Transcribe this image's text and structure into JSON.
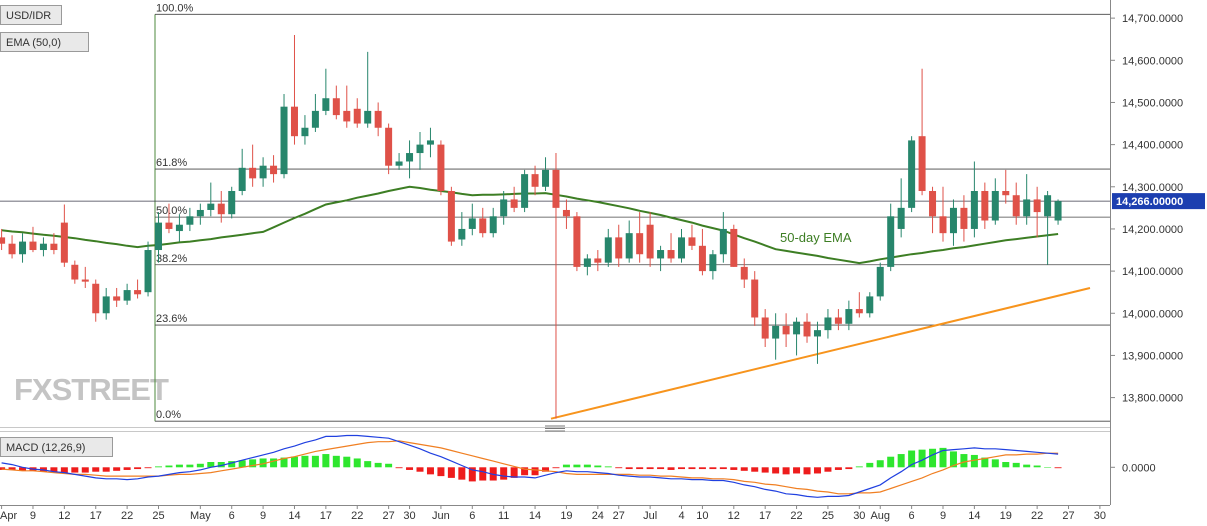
{
  "chart_data": [
    {
      "type": "candlestick",
      "title": "USD/IDR",
      "categories": [
        "Apr",
        null,
        null,
        "9",
        null,
        null,
        "12",
        null,
        null,
        "17",
        null,
        null,
        "22",
        null,
        null,
        "25",
        null,
        null,
        null,
        "May",
        null,
        null,
        "6",
        null,
        null,
        "9",
        null,
        null,
        "14",
        null,
        null,
        "17",
        null,
        null,
        "22",
        null,
        null,
        "27",
        null,
        "30",
        null,
        null,
        "Jun",
        null,
        null,
        "6",
        null,
        null,
        "11",
        null,
        null,
        "14",
        null,
        null,
        "19",
        null,
        null,
        "24",
        null,
        "27",
        null,
        null,
        "Jul",
        null,
        null,
        "4",
        null,
        "10",
        null,
        null,
        "12",
        null,
        null,
        "17",
        null,
        null,
        "22",
        null,
        null,
        "25",
        null,
        null,
        "30",
        null,
        "Aug",
        null,
        null,
        "6",
        null,
        null,
        "9",
        null,
        null,
        "14",
        null,
        null,
        "19",
        null,
        null,
        "22",
        null,
        null,
        "27",
        null,
        null,
        "30"
      ],
      "open": [
        14180,
        14165,
        14140,
        14170,
        14150,
        14165,
        14215,
        14115,
        14080,
        14070,
        14000,
        14040,
        14030,
        14055,
        14050,
        14150,
        14215,
        14195,
        14210,
        14230,
        14245,
        14260,
        14235,
        14290,
        14345,
        14320,
        14350,
        14330,
        14490,
        14420,
        14440,
        14480,
        14510,
        14480,
        14485,
        14450,
        14480,
        14440,
        14350,
        14360,
        14380,
        14400,
        14400,
        14290,
        14175,
        14200,
        14225,
        14190,
        14230,
        14270,
        14250,
        14330,
        14300,
        14340,
        14245,
        14230,
        14110,
        14130,
        14120,
        14180,
        14130,
        14190,
        14210,
        14130,
        14150,
        14130,
        14180,
        14160,
        14100,
        14140,
        14200,
        14110,
        14080,
        13990,
        13940,
        13970,
        13950,
        13980,
        13945,
        13960,
        13990,
        13975,
        14010,
        14000,
        14040,
        14110,
        14200,
        14250,
        14420,
        14290,
        14230,
        14190,
        14250,
        14200,
        14290,
        14220,
        14290,
        14280,
        14230,
        14270,
        14230,
        14220,
        null,
        null,
        null,
        null
      ],
      "high": [
        14200,
        14185,
        14190,
        14205,
        14180,
        14190,
        14258,
        14125,
        14110,
        14080,
        14060,
        14060,
        14070,
        14080,
        14170,
        14240,
        14260,
        14235,
        14250,
        14260,
        14310,
        14290,
        14300,
        14390,
        14400,
        14370,
        14375,
        14520,
        14660,
        14470,
        14520,
        14580,
        14540,
        14540,
        14510,
        14620,
        14500,
        14450,
        14380,
        14410,
        14430,
        14440,
        14410,
        14300,
        14240,
        14260,
        14250,
        14250,
        14290,
        14300,
        14340,
        14350,
        14370,
        14380,
        14270,
        14240,
        14140,
        14150,
        14200,
        14210,
        14220,
        14240,
        14240,
        14160,
        14190,
        14200,
        14210,
        14200,
        14150,
        14240,
        14210,
        14130,
        14100,
        14010,
        14000,
        14000,
        13990,
        14000,
        13980,
        14010,
        14010,
        14030,
        14050,
        14050,
        14120,
        14260,
        14320,
        14420,
        14580,
        14300,
        14300,
        14270,
        14280,
        14360,
        14310,
        14320,
        14340,
        14310,
        14330,
        14300,
        14290,
        14270,
        null,
        null,
        null,
        null
      ],
      "low": [
        14150,
        14130,
        14120,
        14145,
        14135,
        14140,
        14110,
        14070,
        14060,
        13980,
        13985,
        14015,
        14020,
        14035,
        14040,
        14120,
        14190,
        14170,
        14195,
        14210,
        14230,
        14215,
        14225,
        14280,
        14300,
        14300,
        14310,
        14320,
        14400,
        14400,
        14430,
        14470,
        14460,
        14440,
        14440,
        14440,
        14420,
        14330,
        14340,
        14320,
        14340,
        14370,
        14280,
        14160,
        14160,
        14185,
        14180,
        14180,
        14210,
        14240,
        14240,
        14280,
        14290,
        13750,
        14200,
        14100,
        14090,
        14100,
        14110,
        14110,
        14120,
        14120,
        14110,
        14100,
        14120,
        14120,
        14150,
        14090,
        14080,
        14120,
        14110,
        14060,
        13970,
        13920,
        13890,
        13920,
        13900,
        13930,
        13880,
        13940,
        13960,
        13960,
        13990,
        13990,
        14030,
        14100,
        14180,
        14240,
        14280,
        14190,
        14170,
        14160,
        14170,
        14180,
        14200,
        14210,
        14260,
        14210,
        14210,
        14180,
        14115,
        14210,
        null,
        null,
        null,
        null
      ],
      "close": [
        14165,
        14140,
        14170,
        14150,
        14165,
        14150,
        14120,
        14080,
        14075,
        14000,
        14040,
        14030,
        14055,
        14045,
        14150,
        14215,
        14200,
        14210,
        14230,
        14245,
        14260,
        14235,
        14290,
        14345,
        14320,
        14350,
        14330,
        14490,
        14420,
        14440,
        14480,
        14510,
        14470,
        14455,
        14450,
        14480,
        14440,
        14350,
        14360,
        14380,
        14400,
        14410,
        14290,
        14170,
        14200,
        14225,
        14190,
        14230,
        14270,
        14250,
        14330,
        14300,
        14340,
        14250,
        14230,
        14110,
        14130,
        14120,
        14180,
        14130,
        14190,
        14140,
        14130,
        14150,
        14130,
        14180,
        14160,
        14100,
        14140,
        14200,
        14110,
        14080,
        13990,
        13940,
        13970,
        13950,
        13980,
        13945,
        13960,
        13990,
        13975,
        14010,
        14000,
        14040,
        14110,
        14230,
        14250,
        14410,
        14290,
        14230,
        14190,
        14250,
        14200,
        14290,
        14220,
        14290,
        14280,
        14230,
        14270,
        14240,
        14280,
        14266,
        null,
        null,
        null,
        null
      ],
      "up_color": "#27866c",
      "down_color": "#df5148",
      "ylim": [
        13735,
        14743
      ],
      "yticks": [
        {
          "value": 13800,
          "label": "13,800.0000"
        },
        {
          "value": 13900,
          "label": "13,900.0000"
        },
        {
          "value": 14000,
          "label": "14,000.0000"
        },
        {
          "value": 14100,
          "label": "14,100.0000"
        },
        {
          "value": 14200,
          "label": "14,200.0000"
        },
        {
          "value": 14300,
          "label": "14,300.0000"
        },
        {
          "value": 14400,
          "label": "14,400.0000"
        },
        {
          "value": 14500,
          "label": "14,500.0000"
        },
        {
          "value": 14600,
          "label": "14,600.0000"
        },
        {
          "value": 14700,
          "label": "14,700.0000"
        }
      ],
      "ema": {
        "name": "EMA (50,0)",
        "annotation": "50-day EMA",
        "color": "#3d7e24",
        "values": [
          14197,
          14194,
          14192,
          14189,
          14186,
          14184,
          14181,
          14178,
          14174,
          14171,
          14167,
          14164,
          14160,
          14157,
          14160,
          14162,
          14165,
          14168,
          14170,
          14173,
          14176,
          14180,
          14183,
          14186,
          14190,
          14193,
          14204,
          14215,
          14226,
          14236,
          14247,
          14258,
          14263,
          14268,
          14274,
          14279,
          14284,
          14290,
          14295,
          14300,
          14297,
          14293,
          14290,
          14287,
          14283,
          14280,
          14281,
          14281,
          14282,
          14283,
          14284,
          14284,
          14285,
          14281,
          14277,
          14272,
          14268,
          14264,
          14259,
          14254,
          14249,
          14243,
          14238,
          14233,
          14227,
          14221,
          14215,
          14208,
          14202,
          14196,
          14187,
          14178,
          14170,
          14161,
          14152,
          14148,
          14144,
          14140,
          14136,
          14131,
          14127,
          14123,
          14119,
          14123,
          14128,
          14132,
          14136,
          14140,
          14143,
          14147,
          14150,
          14154,
          14157,
          14161,
          14165,
          14169,
          14173,
          14176,
          14179,
          14182,
          14185,
          14188,
          null,
          null,
          null,
          null
        ]
      },
      "last_price": {
        "value": 14266,
        "label": "14,266.00000",
        "color": "#1c3fb0"
      },
      "fib_levels": [
        {
          "value": 14709,
          "label": "100.0%"
        },
        {
          "value": 14342,
          "label": "61.8%"
        },
        {
          "value": 14228,
          "label": "50.0%"
        },
        {
          "value": 14115,
          "label": "38.2%"
        },
        {
          "value": 13972,
          "label": "23.6%"
        },
        {
          "value": 13744,
          "label": "0.0%"
        }
      ],
      "trendline": {
        "color": "#f7941d",
        "values": [
          13750,
          14060
        ]
      },
      "watermark": "FXSTREET"
    },
    {
      "type": "macd",
      "title": "MACD (12,26,9)",
      "ylim": [
        -45,
        40
      ],
      "yticks": [
        {
          "value": 0,
          "label": "0.0000"
        }
      ],
      "macd": {
        "color": "#2040e0",
        "values": [
          5,
          3,
          0,
          -2,
          -3,
          -5,
          -6,
          -8,
          -10,
          -12,
          -13,
          -13,
          -14,
          -13,
          -11,
          -10,
          -8,
          -6,
          -5,
          -3,
          0,
          2,
          5,
          8,
          11,
          14,
          17,
          21,
          24,
          28,
          31,
          35,
          35,
          36,
          36,
          35,
          34,
          33,
          29,
          25,
          21,
          16,
          12,
          7,
          2,
          -3,
          -5,
          -8,
          -10,
          -11,
          -11,
          -12,
          -9,
          -6,
          -4,
          -5,
          -5,
          -6,
          -7,
          -9,
          -10,
          -11,
          -11,
          -12,
          -13,
          -13,
          -14,
          -14,
          -15,
          -15,
          -17,
          -20,
          -22,
          -25,
          -27,
          -30,
          -31,
          -33,
          -34,
          -33,
          -33,
          -32,
          -28,
          -24,
          -20,
          -12,
          -5,
          3,
          8,
          14,
          19,
          20,
          21,
          22,
          21,
          21,
          20,
          19,
          18,
          17,
          16,
          15,
          null,
          null,
          null,
          null
        ]
      },
      "signal": {
        "color": "#f07f22",
        "values": [
          -2,
          -3,
          -4,
          -4,
          -5,
          -6,
          -7,
          -8,
          -8,
          -9,
          -10,
          -10,
          -10,
          -10,
          -10,
          -10,
          -9,
          -8,
          -8,
          -7,
          -6,
          -4,
          -2,
          0,
          2,
          4,
          7,
          10,
          12,
          15,
          18,
          20,
          22,
          24,
          26,
          28,
          29,
          29,
          30,
          28,
          26,
          24,
          22,
          19,
          16,
          13,
          10,
          7,
          4,
          1,
          -2,
          -3,
          -4,
          -5,
          -7,
          -8,
          -8,
          -8,
          -8,
          -8,
          -8,
          -9,
          -9,
          -10,
          -10,
          -11,
          -12,
          -12,
          -13,
          -13,
          -14,
          -16,
          -17,
          -19,
          -20,
          -22,
          -24,
          -25,
          -27,
          -28,
          -30,
          -30,
          -29,
          -29,
          -28,
          -24,
          -20,
          -16,
          -12,
          -7,
          -3,
          2,
          6,
          8,
          10,
          12,
          14,
          14,
          15,
          15,
          16,
          16,
          null,
          null,
          null,
          null
        ]
      },
      "histogram": {
        "up_color": "#2ee62e",
        "down_color": "#ee1c1c",
        "values": [
          -3,
          -3,
          -4,
          -4,
          -5,
          -5,
          -6,
          -6,
          -6,
          -5,
          -5,
          -4,
          -3,
          -2,
          -1,
          1,
          2,
          3,
          3,
          4,
          6,
          6,
          7,
          8,
          9,
          10,
          10,
          11,
          12,
          13,
          13,
          15,
          13,
          12,
          10,
          7,
          5,
          4,
          -1,
          -3,
          -5,
          -8,
          -10,
          -12,
          -14,
          -16,
          -15,
          -15,
          -14,
          -12,
          -9,
          -9,
          -5,
          -1,
          3,
          3,
          3,
          2,
          1,
          -1,
          -2,
          -2,
          -2,
          -2,
          -3,
          -2,
          -2,
          -2,
          -2,
          -2,
          -3,
          -4,
          -5,
          -6,
          -7,
          -8,
          -7,
          -8,
          -7,
          -5,
          -3,
          -2,
          1,
          5,
          8,
          12,
          15,
          19,
          20,
          21,
          22,
          18,
          15,
          14,
          11,
          9,
          6,
          5,
          3,
          2,
          0,
          -1,
          null,
          null,
          null,
          null
        ]
      }
    }
  ]
}
